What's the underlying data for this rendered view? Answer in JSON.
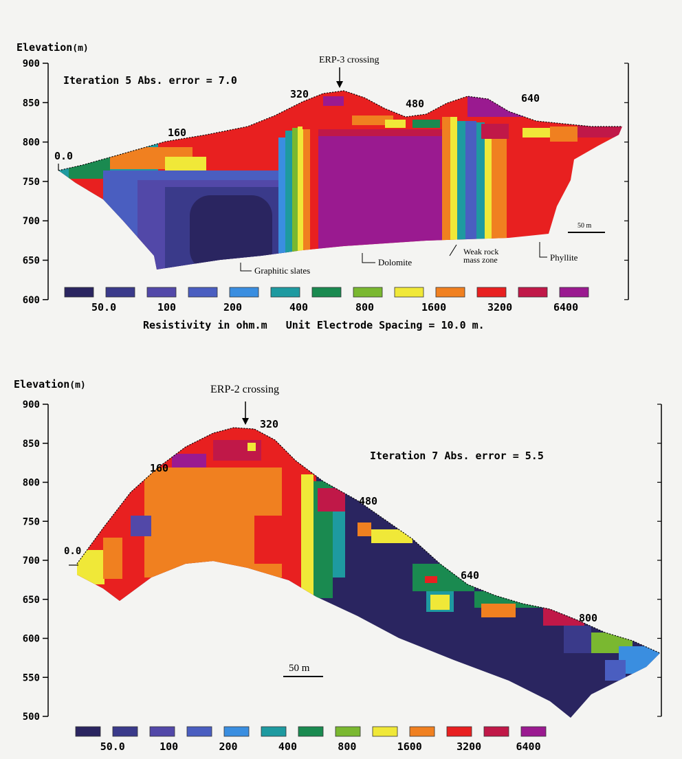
{
  "colors": [
    "#2a2560",
    "#3a3a8a",
    "#5248a8",
    "#4a5ec0",
    "#3a8ee0",
    "#1e9aa0",
    "#1a8a50",
    "#7ab830",
    "#f0e838",
    "#f08020",
    "#e82020",
    "#c01848",
    "#9a1a90"
  ],
  "legend_labels": [
    "50.0",
    "100",
    "200",
    "400",
    "800",
    "1600",
    "3200",
    "6400"
  ],
  "panel1": {
    "ylabel": "Elevation",
    "yunit": "(m)",
    "yticks": [
      "900",
      "850",
      "800",
      "750",
      "700",
      "650",
      "600"
    ],
    "iteration": "Iteration 5 Abs. error = 7.0",
    "crossing": "ERP-3 crossing",
    "distance_labels": [
      "0.0",
      "160",
      "320",
      "480",
      "640"
    ],
    "rock_labels": [
      "Graphitic slates",
      "Dolomite",
      "Weak rock\nmass zone",
      "Phyllite"
    ],
    "scale": "50 m",
    "footer": "Resistivity in ohm.m   Unit Electrode Spacing = 10.0 m."
  },
  "panel2": {
    "ylabel": "Elevation",
    "yunit": "(m)",
    "yticks": [
      "900",
      "850",
      "800",
      "750",
      "700",
      "650",
      "600",
      "550",
      "500"
    ],
    "iteration": "Iteration 7 Abs. error = 5.5",
    "crossing": "ERP-2 crossing",
    "distance_labels": [
      "0.0",
      "160",
      "320",
      "480",
      "640",
      "800"
    ],
    "scale": "50 m"
  }
}
